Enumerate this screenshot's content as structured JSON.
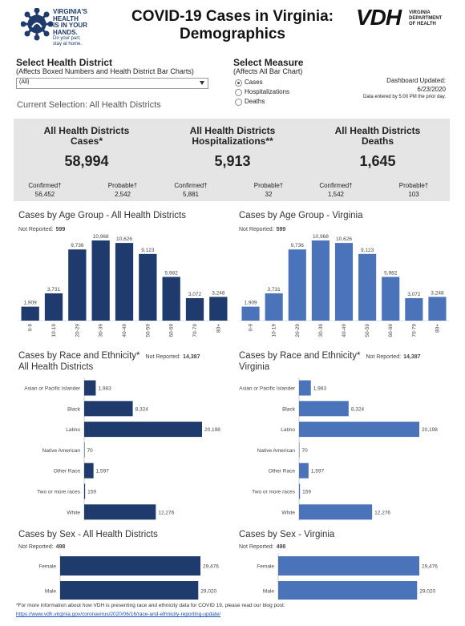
{
  "header": {
    "logo_lines": [
      "VIRGINIA'S",
      "HEALTH",
      "IS IN YOUR",
      "HANDS."
    ],
    "logo_tagline": [
      "Do your part,",
      "stay at home."
    ],
    "title": [
      "COVID-19 Cases in Virginia:",
      "Demographics"
    ],
    "vdh": "VDH",
    "vdh_lines": [
      "VIRGINIA",
      "DEPARTMENT",
      "OF HEALTH"
    ]
  },
  "filters": {
    "district_label": "Select Health District",
    "district_hint": "(Affects Boxed Numbers and Health District Bar Charts)",
    "district_value": "(All)",
    "measure_label": "Select Measure",
    "measure_hint": "(Affects All Bar Chart)",
    "measure_options": [
      "Cases",
      "Hospitalizations",
      "Deaths"
    ],
    "updated_label": "Dashboard Updated:",
    "updated_date": "6/23/2020",
    "updated_note": "Data entered by 5:00 PM the prior day.",
    "current_selection": "Current Selection: All Health Districts"
  },
  "kpis": [
    {
      "title": [
        "All Health Districts",
        "Cases*"
      ],
      "value": "58,994",
      "confirmed_label": "Confirmed†",
      "confirmed": "56,452",
      "probable_label": "Probable†",
      "probable": "2,542"
    },
    {
      "title": [
        "All Health Districts",
        "Hospitalizations**"
      ],
      "value": "5,913",
      "confirmed_label": "Confirmed†",
      "confirmed": "5,881",
      "probable_label": "Probable†",
      "probable": "32"
    },
    {
      "title": [
        "All Health Districts",
        "Deaths"
      ],
      "value": "1,645",
      "confirmed_label": "Confirmed†",
      "confirmed": "1,542",
      "probable_label": "Probable†",
      "probable": "103"
    }
  ],
  "chart_data": [
    {
      "type": "bar",
      "orientation": "vertical",
      "title": "Cases by Age Group - All Health Districts",
      "note_label": "Not Reported:",
      "note_value": "599",
      "color": "#1f3b6e",
      "categories": [
        "0-9",
        "10-19",
        "20-29",
        "30-39",
        "40-49",
        "50-59",
        "60-69",
        "70-79",
        "80+"
      ],
      "values": [
        1909,
        3731,
        9736,
        10968,
        10626,
        9123,
        5982,
        3072,
        3248
      ],
      "value_labels": [
        "1,909",
        "3,731",
        "9,736",
        "10,968",
        "10,626",
        "9,123",
        "5,982",
        "3,072",
        "3,248"
      ]
    },
    {
      "type": "bar",
      "orientation": "vertical",
      "title": "Cases by Age Group - Virginia",
      "note_label": "Not Reported:",
      "note_value": "599",
      "color": "#4a73b9",
      "categories": [
        "0-9",
        "10-19",
        "20-29",
        "30-39",
        "40-49",
        "50-59",
        "60-69",
        "70-79",
        "80+"
      ],
      "values": [
        1909,
        3731,
        9736,
        10968,
        10626,
        9123,
        5982,
        3072,
        3248
      ],
      "value_labels": [
        "1,909",
        "3,731",
        "9,736",
        "10,968",
        "10,626",
        "9,123",
        "5,982",
        "3,072",
        "3,248"
      ]
    },
    {
      "type": "bar",
      "orientation": "horizontal",
      "title": "Cases by Race and Ethnicity*",
      "subtitle": "All Health Districts",
      "note_label": "Not Reported:",
      "note_value": "14,387",
      "color": "#1f3b6e",
      "categories": [
        "Asian or Pacific Islander",
        "Black",
        "Latino",
        "Native American",
        "Other Race",
        "Two or more races",
        "White"
      ],
      "values": [
        1983,
        8324,
        20198,
        70,
        1597,
        159,
        12276
      ],
      "value_labels": [
        "1,983",
        "8,324",
        "20,198",
        "70",
        "1,597",
        "159",
        "12,276"
      ]
    },
    {
      "type": "bar",
      "orientation": "horizontal",
      "title": "Cases by Race and Ethnicity*",
      "subtitle": "Virginia",
      "note_label": "Not Reported:",
      "note_value": "14,387",
      "color": "#4a73b9",
      "categories": [
        "Asian or Pacific Islander",
        "Black",
        "Latino",
        "Native American",
        "Other Race",
        "Two or more races",
        "White"
      ],
      "values": [
        1983,
        8324,
        20198,
        70,
        1597,
        159,
        12276
      ],
      "value_labels": [
        "1,983",
        "8,324",
        "20,198",
        "70",
        "1,597",
        "159",
        "12,276"
      ]
    },
    {
      "type": "bar",
      "orientation": "horizontal",
      "title": "Cases by Sex - All Health Districts",
      "note_label": "Not Reported:",
      "note_value": "498",
      "color": "#1f3b6e",
      "categories": [
        "Female",
        "Male"
      ],
      "values": [
        29476,
        29020
      ],
      "value_labels": [
        "29,476",
        "29,020"
      ]
    },
    {
      "type": "bar",
      "orientation": "horizontal",
      "title": "Cases by Sex - Virginia",
      "note_label": "Not Reported:",
      "note_value": "498",
      "color": "#4a73b9",
      "categories": [
        "Female",
        "Male"
      ],
      "values": [
        29476,
        29020
      ],
      "value_labels": [
        "29,476",
        "29,020"
      ]
    }
  ],
  "footer": {
    "note": "*For more information about how VDH is presenting race and ethnicity data for COVID 19, please read our blog post:",
    "link": "https://www.vdh.virginia.gov/coronavirus/2020/06/16/race-and-ethnicity-reporting-update/"
  }
}
